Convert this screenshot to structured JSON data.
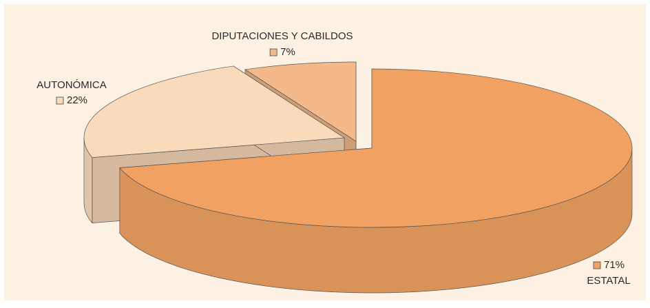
{
  "chart_data": {
    "type": "pie3d",
    "categories": [
      "ESTATAL",
      "AUTONÓMICA",
      "DIPUTACIONES Y CABILDOS"
    ],
    "values": [
      71,
      22,
      7
    ],
    "value_labels": [
      "71%",
      "22%",
      "7%"
    ],
    "colors": [
      "#f1a262",
      "#f9dabb",
      "#f4b98b"
    ]
  }
}
